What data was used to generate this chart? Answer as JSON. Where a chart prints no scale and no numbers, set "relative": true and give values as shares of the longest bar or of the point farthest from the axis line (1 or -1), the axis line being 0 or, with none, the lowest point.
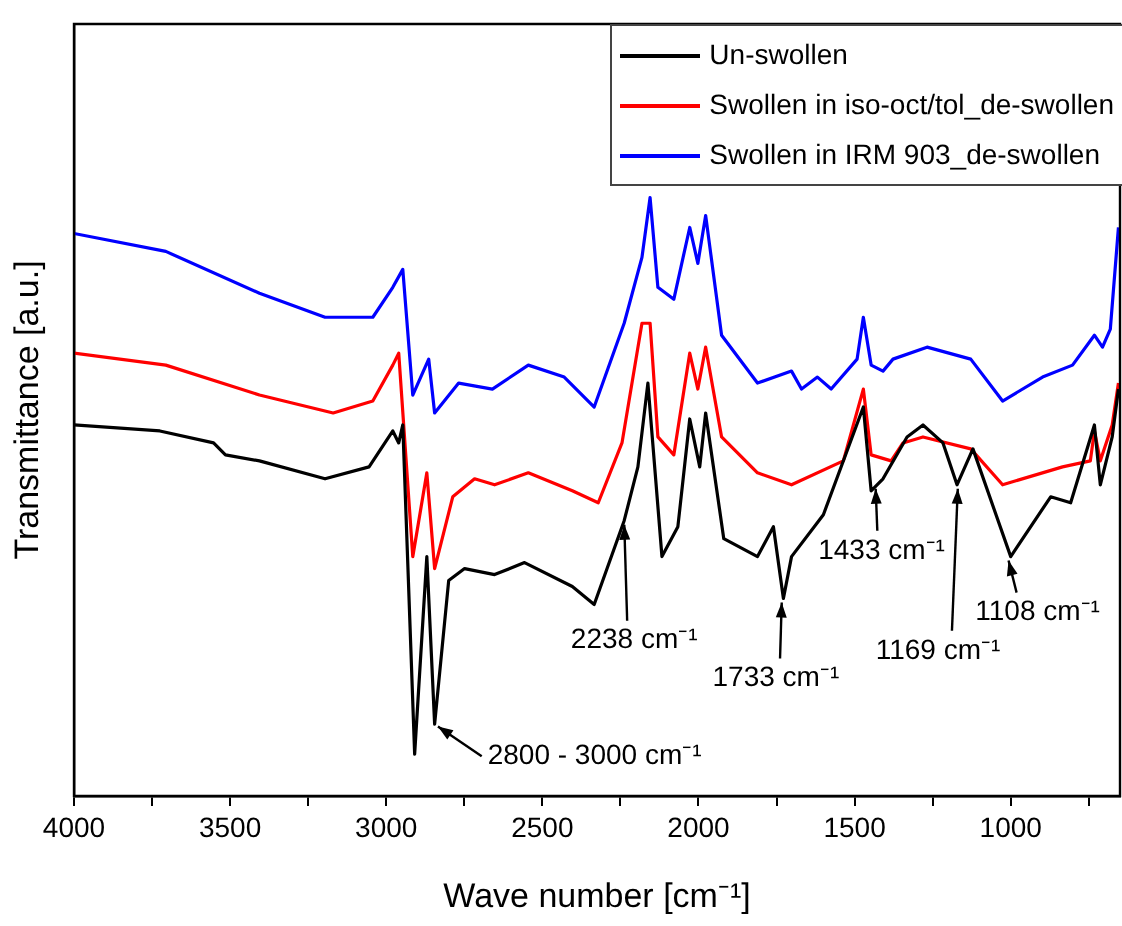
{
  "chart_data": {
    "type": "line",
    "xlabel": "Wave number [cm⁻¹]",
    "ylabel": "Transmittance [a.u.]",
    "relative": true,
    "xlim": [
      4000,
      650
    ],
    "xticks": [
      4000,
      {
        "value": 3750,
        "label": null
      },
      3500,
      {
        "value": 3250,
        "label": null
      },
      3000,
      {
        "value": 2750,
        "label": null
      },
      2500,
      {
        "value": 2250,
        "label": null
      },
      2000,
      {
        "value": 1750,
        "label": null
      },
      1500,
      {
        "value": 1250,
        "label": null
      },
      1000,
      {
        "value": 750,
        "label": null
      }
    ],
    "legend": "top right",
    "grid": false,
    "marker": "none",
    "line_style": "solid",
    "series": [
      {
        "name": "Un-swollen",
        "color": "#000000",
        "x": [
          4000,
          3725,
          3553,
          3515,
          3406,
          3196,
          3055,
          2979,
          2960,
          2947,
          2909,
          2870,
          2845,
          2800,
          2749,
          2653,
          2557,
          2404,
          2334,
          2238,
          2194,
          2162,
          2117,
          2066,
          2028,
          1996,
          1977,
          1919,
          1811,
          1760,
          1728,
          1702,
          1600,
          1472,
          1447,
          1409,
          1332,
          1281,
          1217,
          1172,
          1121,
          1000,
          872,
          808,
          732,
          713,
          675,
          655
        ],
        "values": [
          0.62,
          0.61,
          0.59,
          0.57,
          0.56,
          0.53,
          0.55,
          0.61,
          0.59,
          0.62,
          0.07,
          0.4,
          0.12,
          0.36,
          0.38,
          0.37,
          0.39,
          0.35,
          0.32,
          0.46,
          0.55,
          0.69,
          0.4,
          0.45,
          0.63,
          0.55,
          0.64,
          0.43,
          0.4,
          0.45,
          0.33,
          0.4,
          0.47,
          0.65,
          0.51,
          0.53,
          0.6,
          0.62,
          0.59,
          0.52,
          0.58,
          0.4,
          0.5,
          0.49,
          0.62,
          0.52,
          0.6,
          0.68
        ]
      },
      {
        "name": "Swollen in iso-oct/tol_de-swollen",
        "color": "#ff0000",
        "x": [
          4000,
          3706,
          3406,
          3170,
          3043,
          2979,
          2960,
          2915,
          2870,
          2845,
          2787,
          2717,
          2653,
          2545,
          2404,
          2321,
          2245,
          2181,
          2155,
          2130,
          2079,
          2028,
          2002,
          1977,
          1926,
          1811,
          1702,
          1536,
          1472,
          1447,
          1383,
          1345,
          1281,
          1128,
          1026,
          834,
          745,
          732,
          713,
          675,
          655
        ],
        "values": [
          0.74,
          0.72,
          0.67,
          0.64,
          0.66,
          0.72,
          0.74,
          0.4,
          0.54,
          0.38,
          0.5,
          0.53,
          0.52,
          0.54,
          0.51,
          0.49,
          0.59,
          0.79,
          0.79,
          0.6,
          0.57,
          0.74,
          0.68,
          0.75,
          0.6,
          0.54,
          0.52,
          0.56,
          0.68,
          0.57,
          0.56,
          0.59,
          0.6,
          0.58,
          0.52,
          0.55,
          0.56,
          0.61,
          0.56,
          0.62,
          0.69
        ]
      },
      {
        "name": "Swollen in IRM 903_de-swollen",
        "color": "#0000ff",
        "x": [
          4000,
          3706,
          3406,
          3196,
          3043,
          2979,
          2947,
          2915,
          2864,
          2845,
          2768,
          2660,
          2545,
          2430,
          2334,
          2238,
          2181,
          2155,
          2130,
          2079,
          2028,
          2002,
          1977,
          1926,
          1811,
          1702,
          1670,
          1619,
          1575,
          1492,
          1472,
          1447,
          1409,
          1377,
          1268,
          1128,
          1026,
          898,
          802,
          732,
          706,
          681,
          655
        ],
        "values": [
          0.94,
          0.91,
          0.84,
          0.8,
          0.8,
          0.85,
          0.88,
          0.67,
          0.73,
          0.64,
          0.69,
          0.68,
          0.72,
          0.7,
          0.65,
          0.79,
          0.9,
          1,
          0.85,
          0.83,
          0.95,
          0.89,
          0.97,
          0.77,
          0.69,
          0.71,
          0.68,
          0.7,
          0.68,
          0.73,
          0.8,
          0.72,
          0.71,
          0.73,
          0.75,
          0.73,
          0.66,
          0.7,
          0.72,
          0.77,
          0.75,
          0.78,
          0.95
        ]
      }
    ],
    "annotations": [
      {
        "text": "2800 - 3000 cm⁻¹",
        "x": 2845,
        "y": 0.12
      },
      {
        "text": "2238 cm⁻¹",
        "x": 2238,
        "y": 0.46
      },
      {
        "text": "1733 cm⁻¹",
        "x": 1733,
        "y": 0.33
      },
      {
        "text": "1433 cm⁻¹",
        "x": 1433,
        "y": 0.52
      },
      {
        "text": "1169 cm⁻¹",
        "x": 1169,
        "y": 0.52
      },
      {
        "text": "1108 cm⁻¹",
        "x": 1010,
        "y": 0.4
      }
    ]
  }
}
